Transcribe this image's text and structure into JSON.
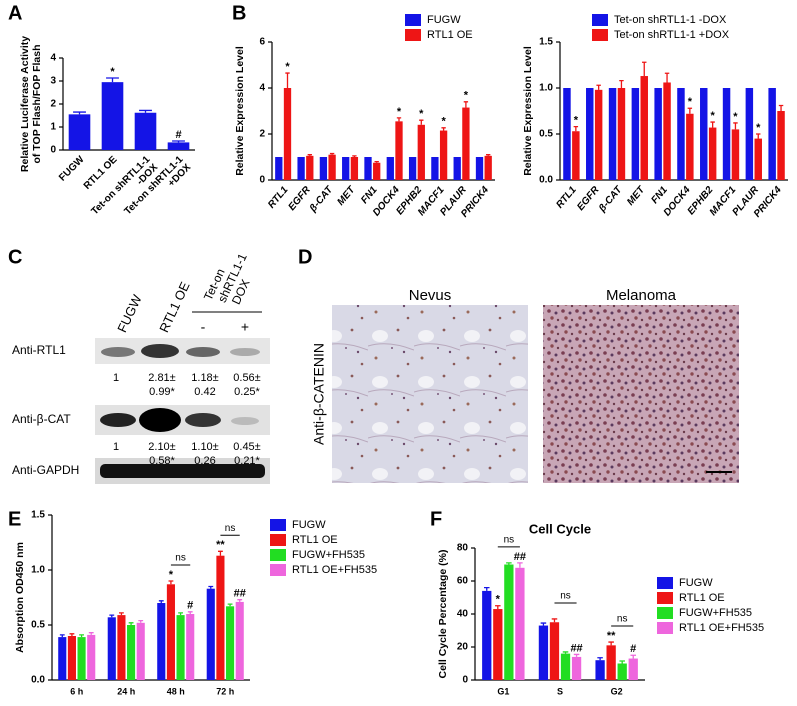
{
  "panels": [
    "A",
    "B",
    "C",
    "D",
    "E",
    "F"
  ],
  "chart_data": [
    {
      "type": "bar",
      "ylabel": [
        "Relative Luciferase Activity",
        "of TOP Flash/FOP Flash"
      ],
      "categories": [
        [
          "FUGW"
        ],
        [
          "RTL1 OE"
        ],
        [
          "Tet-on shRTL1-1",
          "-DOX"
        ],
        [
          "Tet-on shRTL1-1",
          "+DOX"
        ]
      ],
      "series": [
        {
          "color": "#1414e6",
          "values": [
            1.55,
            2.95,
            1.62,
            0.33
          ],
          "errors": [
            0.1,
            0.18,
            0.1,
            0.06
          ],
          "labels": [
            null,
            "*",
            null,
            "#"
          ]
        }
      ],
      "ylim": [
        0,
        4
      ],
      "yticks": [
        0,
        1,
        2,
        3,
        4
      ]
    },
    {
      "type": "bar",
      "ylabel": [
        "Relative Expression Level"
      ],
      "categories": [
        [
          "RTL1"
        ],
        [
          "EGFR"
        ],
        [
          "β-CAT"
        ],
        [
          "MET"
        ],
        [
          "FN1"
        ],
        [
          "DOCK4"
        ],
        [
          "EPHB2"
        ],
        [
          "MACF1"
        ],
        [
          "PLAUR"
        ],
        [
          "PRICK4"
        ]
      ],
      "series": [
        {
          "name": "FUGW",
          "color": "#1414e6",
          "values": [
            1,
            1,
            1,
            1,
            1,
            1,
            1,
            1,
            1,
            1
          ]
        },
        {
          "name": "RTL1 OE",
          "color": "#ee1515",
          "values": [
            4.0,
            1.05,
            1.1,
            1.0,
            0.75,
            2.55,
            2.4,
            2.15,
            3.15,
            1.05
          ],
          "errors": [
            0.65,
            0.05,
            0.05,
            0.05,
            0.05,
            0.15,
            0.2,
            0.12,
            0.25,
            0.05
          ],
          "labels": [
            "*",
            null,
            null,
            null,
            null,
            "*",
            "*",
            "*",
            "*",
            null
          ]
        }
      ],
      "ylim": [
        0,
        6
      ],
      "yticks": [
        0,
        2,
        4,
        6
      ]
    },
    {
      "type": "bar",
      "ylabel": [
        "Relative Expression Level"
      ],
      "categories": [
        [
          "RTL1"
        ],
        [
          "EGFR"
        ],
        [
          "β-CAT"
        ],
        [
          "MET"
        ],
        [
          "FN1"
        ],
        [
          "DOCK4"
        ],
        [
          "EPHB2"
        ],
        [
          "MACF1"
        ],
        [
          "PLAUR"
        ],
        [
          "PRICK4"
        ]
      ],
      "series": [
        {
          "name": "Tet-on shRTL1-1 -DOX",
          "color": "#1414e6",
          "values": [
            1,
            1,
            1,
            1,
            1,
            1,
            1,
            1,
            1,
            1
          ]
        },
        {
          "name": "Tet-on shRTL1-1 +DOX",
          "color": "#ee1515",
          "values": [
            0.53,
            0.98,
            1.0,
            1.13,
            1.06,
            0.72,
            0.57,
            0.55,
            0.45,
            0.75
          ],
          "errors": [
            0.05,
            0.05,
            0.08,
            0.15,
            0.1,
            0.06,
            0.06,
            0.07,
            0.05,
            0.06
          ],
          "labels": [
            "*",
            null,
            null,
            null,
            null,
            "*",
            "*",
            "*",
            "*",
            null
          ]
        }
      ],
      "ylim": [
        0,
        1.5
      ],
      "yticks": [
        {
          "value": 0,
          "label": "0.0"
        },
        {
          "value": 0.5,
          "label": "0.5"
        },
        {
          "value": 1,
          "label": "1.0"
        },
        {
          "value": 1.5,
          "label": "1.5"
        }
      ]
    },
    {
      "type": "bar",
      "ylabel": [
        "Absorption OD450 nm"
      ],
      "categories": [
        [
          "6 h"
        ],
        [
          "24 h"
        ],
        [
          "48 h"
        ],
        [
          "72 h"
        ]
      ],
      "series": [
        {
          "name": "FUGW",
          "color": "#1414e6",
          "values": [
            0.39,
            0.57,
            0.7,
            0.83
          ],
          "errors": [
            0.02,
            0.02,
            0.02,
            0.02
          ]
        },
        {
          "name": "RTL1 OE",
          "color": "#ee1515",
          "values": [
            0.4,
            0.59,
            0.87,
            1.13
          ],
          "errors": [
            0.02,
            0.02,
            0.03,
            0.04
          ],
          "labels": [
            null,
            null,
            "*",
            "**"
          ]
        },
        {
          "name": "FUGW+FH535",
          "color": "#22dd22",
          "values": [
            0.39,
            0.5,
            0.59,
            0.67
          ],
          "errors": [
            0.02,
            0.02,
            0.02,
            0.02
          ]
        },
        {
          "name": "RTL1 OE+FH535",
          "color": "#ee66dd",
          "values": [
            0.41,
            0.52,
            0.6,
            0.71
          ],
          "errors": [
            0.02,
            0.02,
            0.02,
            0.02
          ],
          "labels": [
            null,
            null,
            "#",
            "##"
          ]
        }
      ],
      "bracket_labels": [
        null,
        null,
        "ns",
        "ns"
      ],
      "ylim": [
        0,
        1.5
      ],
      "yticks": [
        {
          "value": 0,
          "label": "0.0"
        },
        {
          "value": 0.5,
          "label": "0.5"
        },
        {
          "value": 1,
          "label": "1.0"
        },
        {
          "value": 1.5,
          "label": "1.5"
        }
      ]
    },
    {
      "type": "bar",
      "title": "Cell Cycle",
      "ylabel": [
        "Cell Cycle Percentage (%)"
      ],
      "categories": [
        [
          "G1"
        ],
        [
          "S"
        ],
        [
          "G2"
        ]
      ],
      "series": [
        {
          "name": "FUGW",
          "color": "#1414e6",
          "values": [
            54,
            33,
            12
          ],
          "errors": [
            2,
            1.5,
            1.5
          ]
        },
        {
          "name": "RTL1 OE",
          "color": "#ee1515",
          "values": [
            43,
            35,
            21
          ],
          "errors": [
            2,
            2,
            2
          ],
          "labels": [
            "*",
            null,
            "**"
          ]
        },
        {
          "name": "FUGW+FH535",
          "color": "#22dd22",
          "values": [
            70,
            16,
            10
          ],
          "errors": [
            1,
            1,
            1.5
          ]
        },
        {
          "name": "RTL1 OE+FH535",
          "color": "#ee66dd",
          "values": [
            68,
            14,
            13
          ],
          "errors": [
            3,
            1.5,
            2
          ],
          "labels": [
            "##",
            "##",
            "#"
          ]
        }
      ],
      "bracket_labels": [
        "ns",
        "ns",
        "ns"
      ],
      "ylim": [
        0,
        80
      ],
      "yticks": [
        0,
        20,
        40,
        60,
        80
      ]
    }
  ],
  "blot": {
    "lanes": [
      "FUGW",
      "RTL1 OE"
    ],
    "group": [
      "Tet-on",
      "shRTL1-1",
      "DOX"
    ],
    "dox": [
      "-",
      "+"
    ],
    "rows": [
      {
        "label": "Anti-RTL1",
        "quant": [
          [
            "1"
          ],
          [
            "2.81±",
            "0.99*"
          ],
          [
            "1.18±",
            "0.42"
          ],
          [
            "0.56±",
            "0.25*"
          ]
        ]
      },
      {
        "label": "Anti-β-CAT",
        "quant": [
          [
            "1"
          ],
          [
            "2.10±",
            "0.58*"
          ],
          [
            "1.10±",
            "0.26"
          ],
          [
            "0.45±",
            "0.21*"
          ]
        ]
      },
      {
        "label": "Anti-GAPDH"
      }
    ]
  },
  "ihc": {
    "titles": [
      "Nevus",
      "Melanoma"
    ],
    "stain": "Anti-β-CATENIN"
  }
}
